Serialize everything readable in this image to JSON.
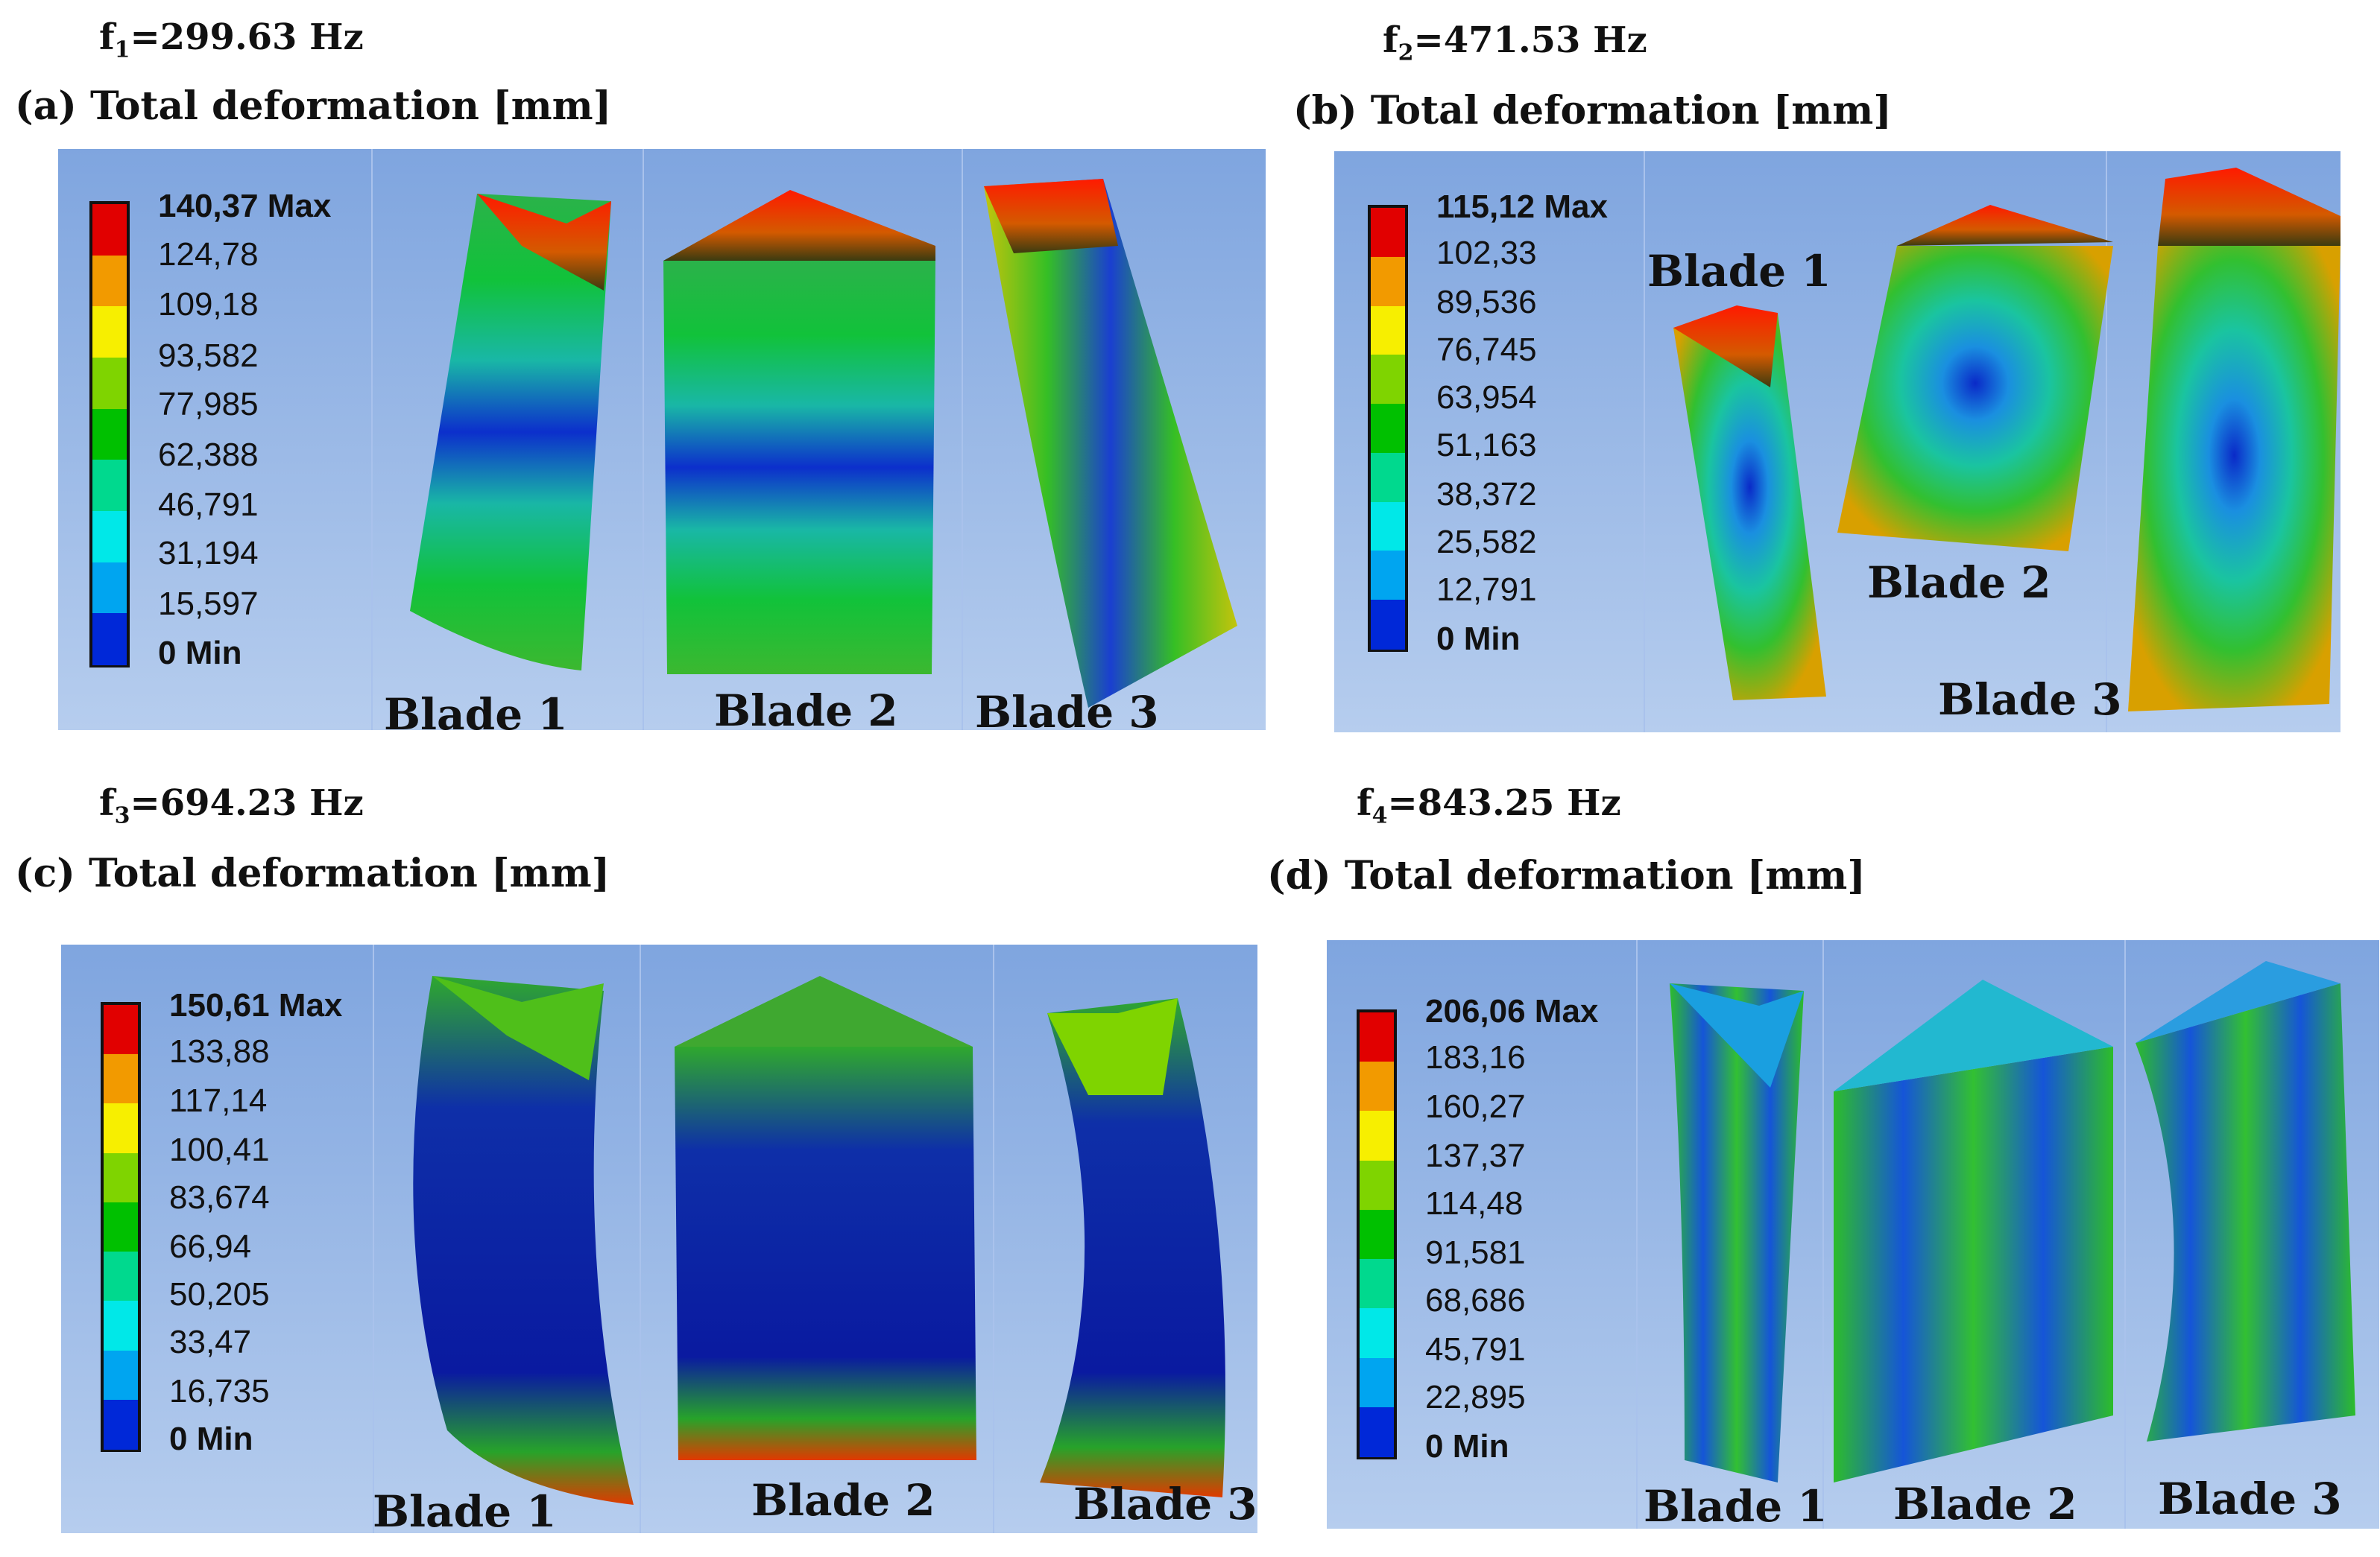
{
  "panels": {
    "a": {
      "freq_base": "f",
      "freq_sub": "1",
      "freq_value": "=299.63 Hz",
      "tag": "(a)",
      "title": "Total deformation [mm]",
      "legend": [
        "140,37 Max",
        "124,78",
        "109,18",
        "93,582",
        "77,985",
        "62,388",
        "46,791",
        "31,194",
        "15,597",
        "0 Min"
      ],
      "blades": [
        "Blade 1",
        "Blade 2",
        "Blade 3"
      ]
    },
    "b": {
      "freq_base": "f",
      "freq_sub": "2",
      "freq_value": "=471.53 Hz",
      "tag": "(b)",
      "title": "Total deformation [mm]",
      "legend": [
        "115,12 Max",
        "102,33",
        "89,536",
        "76,745",
        "63,954",
        "51,163",
        "38,372",
        "25,582",
        "12,791",
        "0 Min"
      ],
      "blades": [
        "Blade 1",
        "Blade 2",
        "Blade 3"
      ]
    },
    "c": {
      "freq_base": "f",
      "freq_sub": "3",
      "freq_value": "=694.23 Hz",
      "tag": "(c)",
      "title": "Total deformation [mm]",
      "legend": [
        "150,61 Max",
        "133,88",
        "117,14",
        "100,41",
        "83,674",
        "66,94",
        "50,205",
        "33,47",
        "16,735",
        "0 Min"
      ],
      "blades": [
        "Blade 1",
        "Blade 2",
        "Blade 3"
      ]
    },
    "d": {
      "freq_base": "f",
      "freq_sub": "4",
      "freq_value": "=843.25 Hz",
      "tag": "(d)",
      "title": "Total deformation [mm]",
      "legend": [
        "206,06 Max",
        "183,16",
        "160,27",
        "137,37",
        "114,48",
        "91,581",
        "68,686",
        "45,791",
        "22,895",
        "0 Min"
      ],
      "blades": [
        "Blade 1",
        "Blade 2",
        "Blade 3"
      ]
    }
  },
  "colors": {
    "scale": [
      "#e10000",
      "#f29a00",
      "#f7ef00",
      "#7fd400",
      "#00c000",
      "#00d98e",
      "#00e8e8",
      "#00a5f0",
      "#0028d8"
    ],
    "panel_bg": "#8fb1e4"
  }
}
